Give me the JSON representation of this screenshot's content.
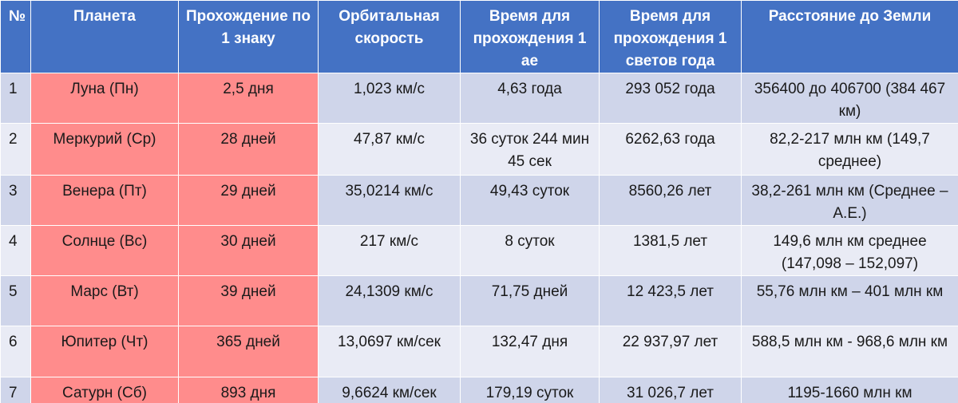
{
  "headers": {
    "num": "№",
    "planet": "Планета",
    "sign_transit": "Прохождение по 1 знаку",
    "orbital_speed": "Орбитальная скорость",
    "time_1au": "Время для прохождения 1 ае",
    "time_1ly": "Время для прохождения 1 светов года",
    "distance": "Расстояние до Земли"
  },
  "rows": [
    {
      "num": "1",
      "planet": "Луна (Пн)",
      "sign_transit": "2,5 дня",
      "orbital_speed": "1,023 км/с",
      "time_1au": "4,63 года",
      "time_1ly": "293 052 года",
      "distance": "356400 до 406700 (384 467 км)"
    },
    {
      "num": "2",
      "planet": "Меркурий (Ср)",
      "sign_transit": "28 дней",
      "orbital_speed": "47,87 км/с",
      "time_1au": "36 суток 244 мин 45 сек",
      "time_1ly": "6262,63 года",
      "distance": "82,2-217 млн км (149,7 среднее)"
    },
    {
      "num": "3",
      "planet": "Венера (Пт)",
      "sign_transit": "29 дней",
      "orbital_speed": "35,0214 км/с",
      "time_1au": "49,43 суток",
      "time_1ly": "8560,26 лет",
      "distance": "38,2-261 млн км (Среднее – А.Е.)"
    },
    {
      "num": "4",
      "planet": "Солнце (Вс)",
      "sign_transit": "30 дней",
      "orbital_speed": "217 км/с",
      "time_1au": "8 суток",
      "time_1ly": "1381,5 лет",
      "distance": "149,6 млн км среднее (147,098 – 152,097)"
    },
    {
      "num": "5",
      "planet": "Марс (Вт)",
      "sign_transit": "39 дней",
      "orbital_speed": "24,1309 км/с",
      "time_1au": "71,75 дней",
      "time_1ly": "12 423,5 лет",
      "distance": "55,76 млн км – 401 млн км"
    },
    {
      "num": "6",
      "planet": "Юпитер (Чт)",
      "sign_transit": "365 дней",
      "orbital_speed": "13,0697 км/сек",
      "time_1au": "132,47 дня",
      "time_1ly": "22 937,97 лет",
      "distance": "588,5 млн км - 968,6 млн км"
    },
    {
      "num": "7",
      "planet": "Сатурн (Сб)",
      "sign_transit": "893 дня",
      "orbital_speed": "9,6624 км/сек",
      "time_1au": "179,19 суток",
      "time_1ly": "31 026,7 лет",
      "distance": "1195-1660 млн км"
    }
  ],
  "colors": {
    "header_bg": "#4472c4",
    "row_dark": "#cfd5ea",
    "row_light": "#e9ebf5",
    "highlight": "#ff8c8c"
  }
}
